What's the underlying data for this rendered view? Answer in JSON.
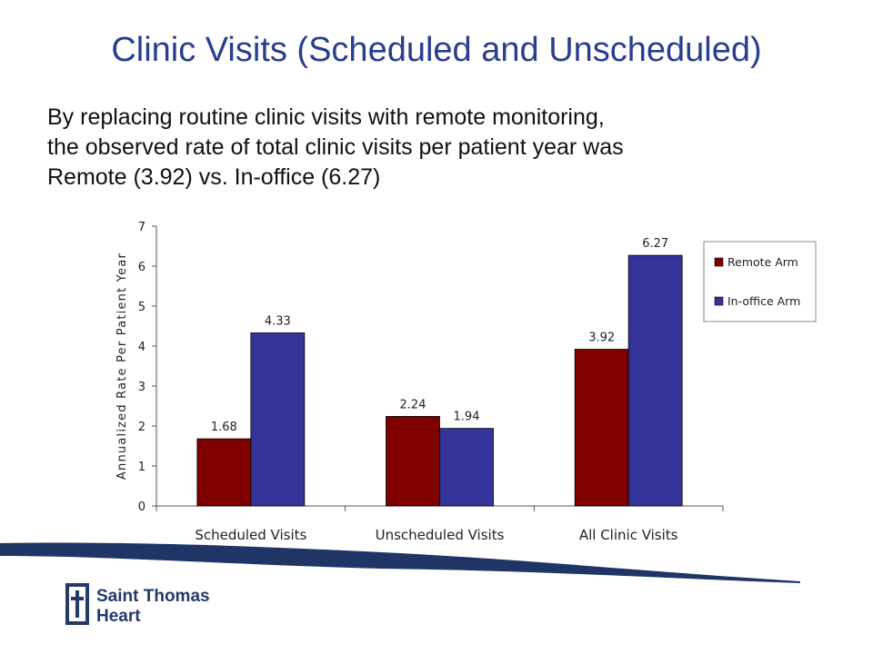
{
  "slide": {
    "title": "Clinic Visits (Scheduled and Unscheduled)",
    "body_lines": [
      "By replacing routine clinic visits with remote monitoring,",
      "the observed rate of total clinic visits per patient year was",
      "Remote (3.92) vs. In-office (6.27)"
    ]
  },
  "chart_data": {
    "type": "bar",
    "title": "",
    "xlabel": "",
    "ylabel": "Annualized Rate Per Patient Year",
    "categories": [
      "Scheduled Visits",
      "Unscheduled Visits",
      "All Clinic Visits"
    ],
    "series": [
      {
        "name": "Remote Arm",
        "values": [
          1.68,
          2.24,
          3.92
        ],
        "color": "#800000"
      },
      {
        "name": "In-office Arm",
        "values": [
          4.33,
          1.94,
          6.27
        ],
        "color": "#333399"
      }
    ],
    "data_labels": [
      [
        "1.68",
        "2.24",
        "3.92"
      ],
      [
        "4.33",
        "1.94",
        "6.27"
      ]
    ],
    "ylim": [
      0,
      7
    ],
    "yticks": [
      0,
      1,
      2,
      3,
      4,
      5,
      6,
      7
    ],
    "grid": false,
    "legend_position": "top-right"
  },
  "logo": {
    "line1": "Saint Thomas",
    "line2": "Heart",
    "color": "#233a6b"
  },
  "colors": {
    "title": "#283e8f",
    "swoosh": "#1f3566"
  }
}
